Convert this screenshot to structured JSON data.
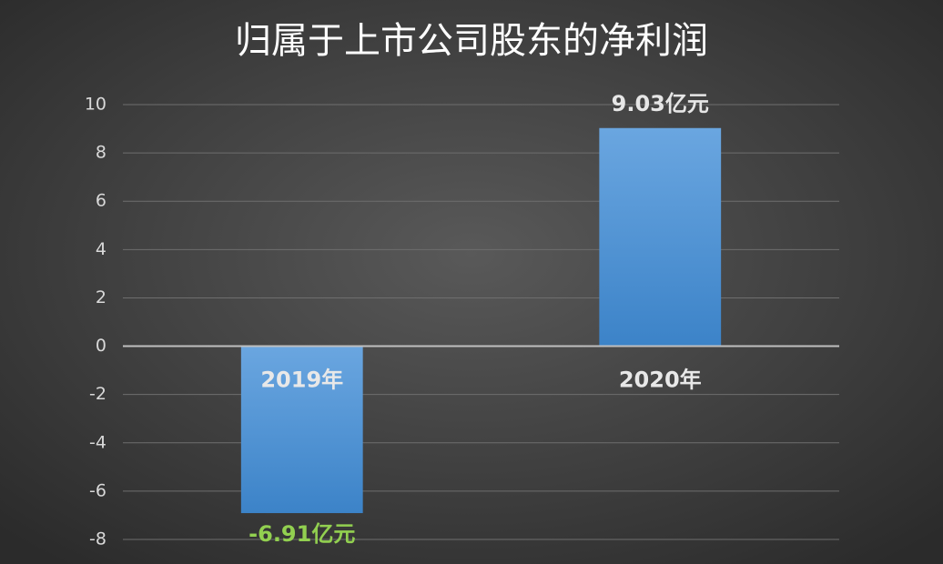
{
  "chart_data": {
    "type": "bar",
    "title": "归属于上市公司股东的净利润",
    "categories": [
      "2019年",
      "2020年"
    ],
    "values": [
      -6.91,
      9.03
    ],
    "value_labels": [
      "-6.91亿元",
      "9.03亿元"
    ],
    "value_label_colors": [
      "#92d050",
      "#e6e6e6"
    ],
    "color": "#4a8fd4",
    "ylim": [
      -8,
      10
    ],
    "yticks": [
      -8,
      -6,
      -4,
      -2,
      0,
      2,
      4,
      6,
      8,
      10
    ],
    "grid": true
  }
}
